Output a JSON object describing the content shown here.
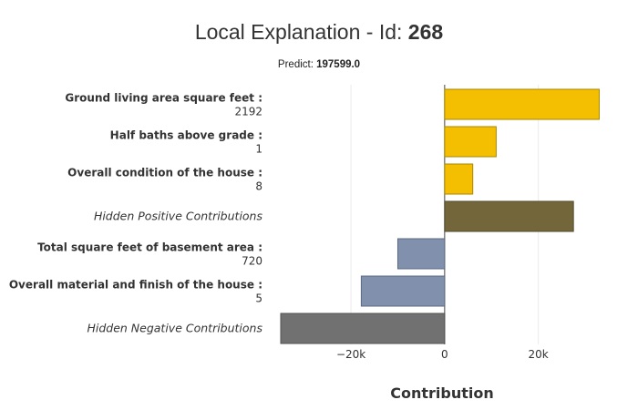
{
  "title": {
    "prefix": "Local Explanation - Id: ",
    "id": "268"
  },
  "subtitle": {
    "prefix": "Predict: ",
    "value": "197599.0"
  },
  "chart_data": {
    "type": "bar",
    "orientation": "horizontal",
    "xlabel": "Contribution",
    "xlim": [
      -35000,
      33500
    ],
    "xticks": [
      {
        "value": -20000,
        "label": "−20k"
      },
      {
        "value": 0,
        "label": "0"
      },
      {
        "value": 20000,
        "label": "20k"
      }
    ],
    "grid": true,
    "bars": [
      {
        "name": "Ground living area square feet :",
        "feature_value": "2192",
        "value": 33000,
        "kind": "positive"
      },
      {
        "name": "Half baths above grade :",
        "feature_value": "1",
        "value": 11000,
        "kind": "positive"
      },
      {
        "name": "Overall condition of the house :",
        "feature_value": "8",
        "value": 6000,
        "kind": "positive"
      },
      {
        "name": "Hidden Positive Contributions",
        "feature_value": "",
        "value": 27500,
        "kind": "hidden-positive"
      },
      {
        "name": "Total square feet of basement area :",
        "feature_value": "720",
        "value": -10000,
        "kind": "negative"
      },
      {
        "name": "Overall material and finish of the house :",
        "feature_value": "5",
        "value": -17800,
        "kind": "negative"
      },
      {
        "name": "Hidden Negative Contributions",
        "feature_value": "",
        "value": -35000,
        "kind": "hidden-negative"
      }
    ],
    "colors": {
      "positive": "#f4bf00",
      "positive_stroke": "#a88700",
      "hidden-positive": "#72663a",
      "hidden-positive_stroke": "#51492a",
      "negative": "#8090ad",
      "negative_stroke": "#5d6a80",
      "hidden-negative": "#717171",
      "hidden-negative_stroke": "#525252"
    }
  }
}
